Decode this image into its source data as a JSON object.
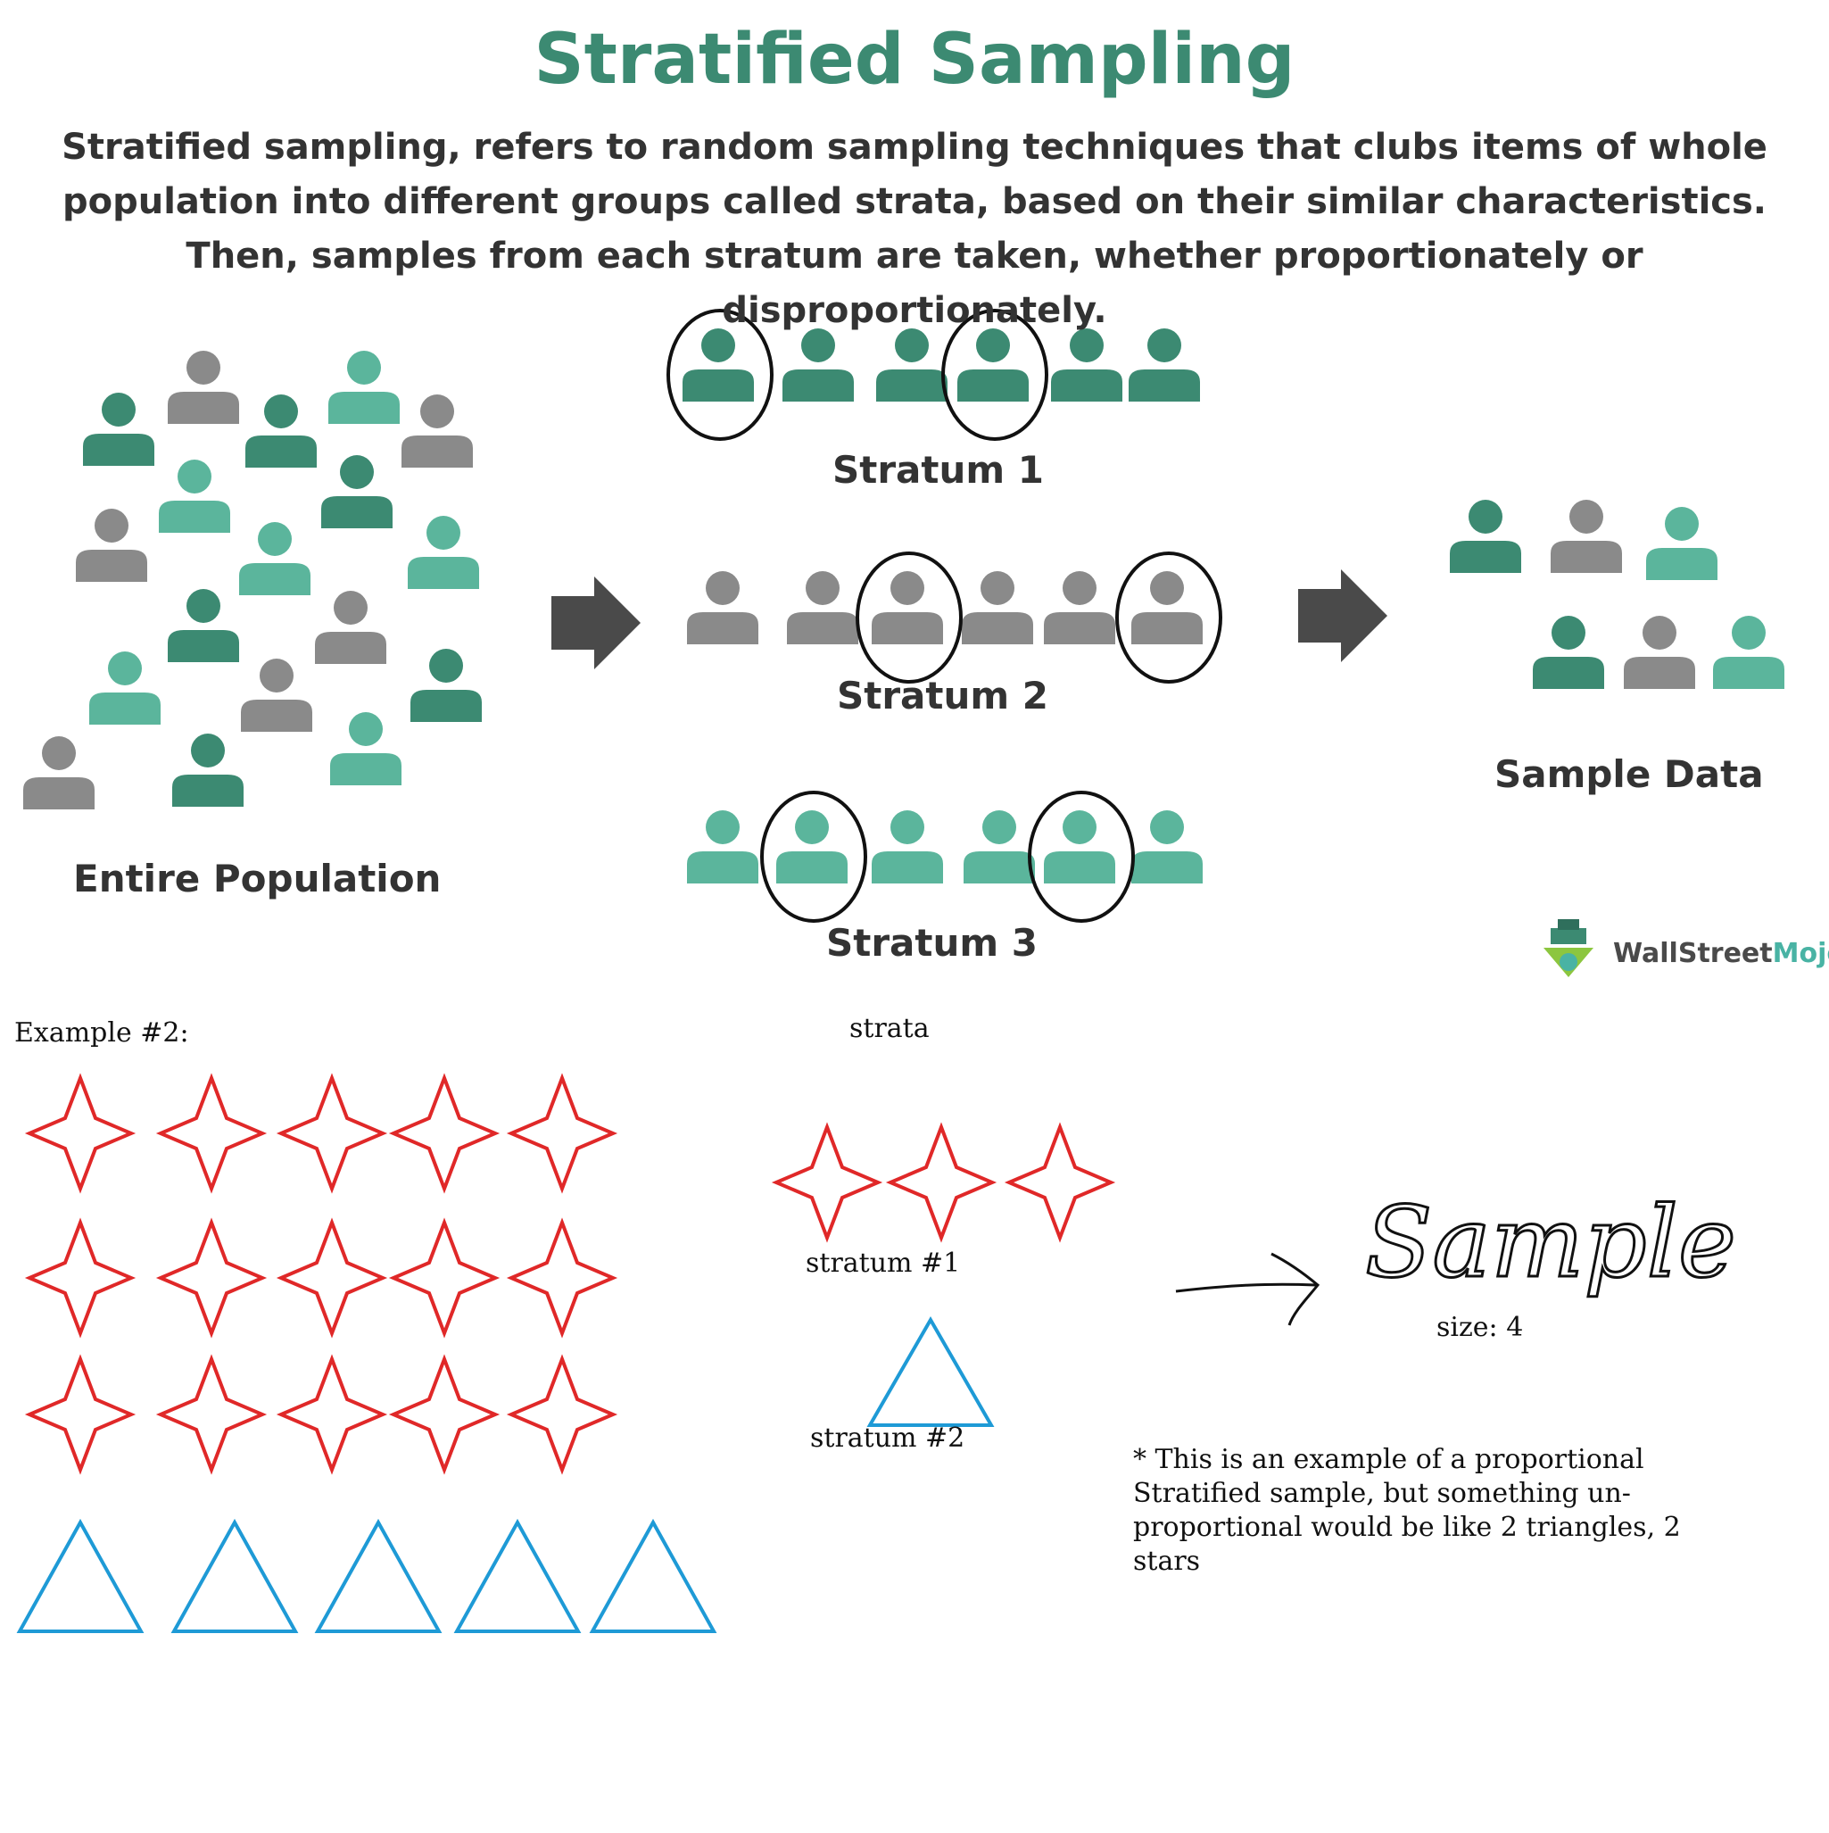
{
  "header": {
    "title": "Stratified Sampling",
    "description": "Stratified sampling, refers to random sampling techniques that  clubs  items of whole population into different groups called strata, based on their similar characteristics. Then, samples from each stratum are taken, whether proportionately or disproportionately."
  },
  "diagram": {
    "population_label": "Entire Population",
    "strata": [
      {
        "label": "Stratum 1",
        "color": "#3c8a72",
        "people": 6,
        "selected": [
          1,
          4
        ]
      },
      {
        "label": "Stratum 2",
        "color": "#8a8a8a",
        "people": 6,
        "selected": [
          3,
          6
        ]
      },
      {
        "label": "Stratum 3",
        "color": "#5bb59c",
        "people": 6,
        "selected": [
          2,
          5
        ]
      }
    ],
    "sample_label": "Sample Data",
    "colors": {
      "dark_green": "#3c8a72",
      "gray": "#8a8a8a",
      "light_green": "#5bb59c",
      "arrow": "#4a4a4a"
    }
  },
  "logo": {
    "name_part1": "WallStreet",
    "name_part2": "Mojo"
  },
  "example": {
    "heading": "Example #2:",
    "population": {
      "stars": 15,
      "triangles": 5
    },
    "strata_heading": "strata",
    "stratum1": {
      "label": "stratum #1",
      "stars": 3
    },
    "stratum2": {
      "label": "stratum #2",
      "triangles": 1
    },
    "sample_word": "Sample",
    "sample_size": "size: 4",
    "note": "* This is an example of a proportional Stratified sample, but something un-proportional would be like 2 triangles, 2 stars",
    "colors": {
      "star": "#e02828",
      "triangle": "#1e9ad6"
    }
  }
}
